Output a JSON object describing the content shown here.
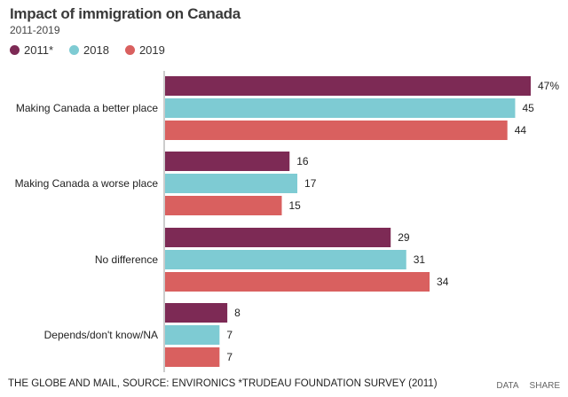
{
  "header": {
    "title": "Impact of immigration on Canada",
    "subtitle": "2011-2019"
  },
  "footer": {
    "source": "THE GLOBE AND MAIL, SOURCE: ENVIRONICS *TRUDEAU FOUNDATION SURVEY (2011)",
    "data_link": "DATA",
    "share_link": "SHARE"
  },
  "chart_data": {
    "type": "bar",
    "orientation": "horizontal",
    "title": "Impact of immigration on Canada",
    "subtitle": "2011-2019",
    "categories": [
      "Making Canada a better place",
      "Making Canada a worse place",
      "No difference",
      "Depends/don't know/NA"
    ],
    "series": [
      {
        "name": "2011*",
        "color": "#7d2a55",
        "values": [
          47,
          16,
          29,
          8
        ],
        "labels": [
          "47%",
          "16",
          "29",
          "8"
        ]
      },
      {
        "name": "2018",
        "color": "#7ecbd3",
        "values": [
          45,
          17,
          31,
          7
        ],
        "labels": [
          "45",
          "17",
          "31",
          "7"
        ]
      },
      {
        "name": "2019",
        "color": "#d9605f",
        "values": [
          44,
          15,
          34,
          7
        ],
        "labels": [
          "44",
          "15",
          "34",
          "7"
        ]
      }
    ],
    "xlim": [
      0,
      47
    ],
    "unit": "%",
    "grid": false,
    "legend": "top-left"
  }
}
